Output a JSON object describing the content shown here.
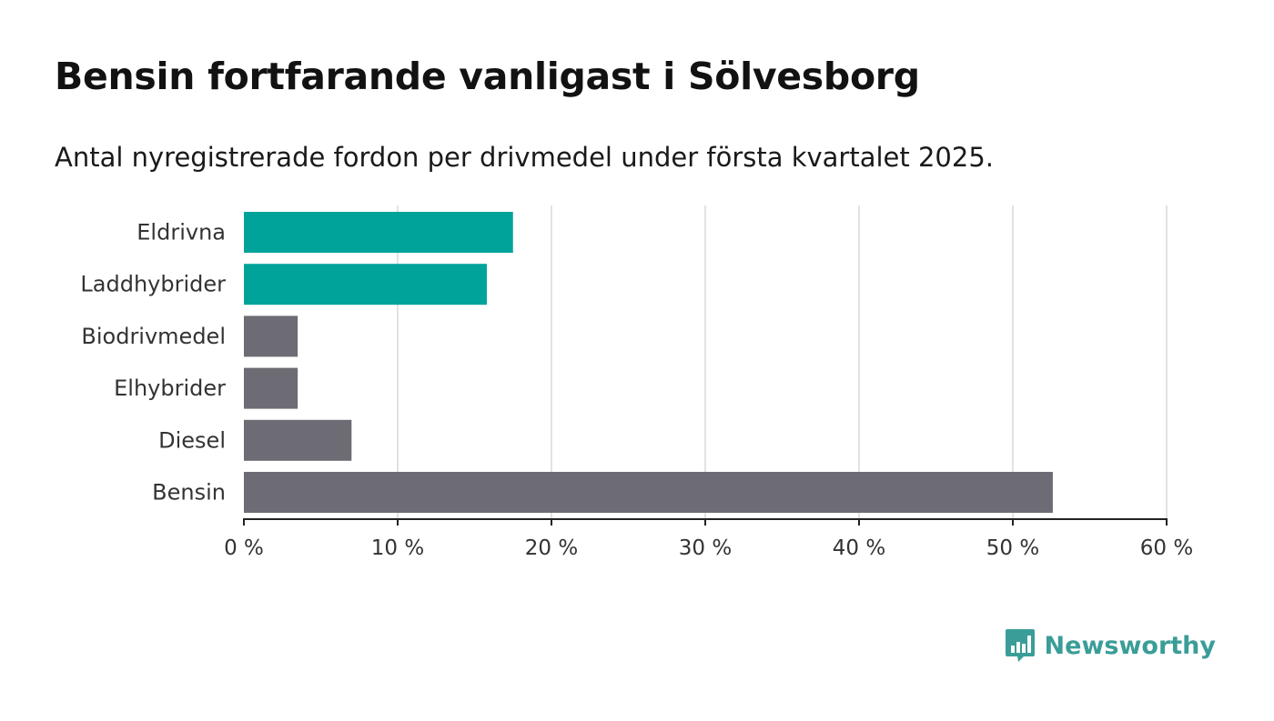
{
  "chart_data": {
    "type": "bar",
    "orientation": "horizontal",
    "title": "Bensin fortfarande vanligast i Sölvesborg",
    "subtitle": "Antal nyregistrerade fordon per drivmedel under första kvartalet 2025.",
    "categories": [
      "Eldrivna",
      "Laddhybrider",
      "Biodrivmedel",
      "Elhybrider",
      "Diesel",
      "Bensin"
    ],
    "values": [
      17.5,
      15.8,
      3.5,
      3.5,
      7.0,
      52.6
    ],
    "bar_colors": [
      "#00a39a",
      "#00a39a",
      "#6d6b73",
      "#6d6b73",
      "#6d6b73",
      "#6d6b73"
    ],
    "xlim": [
      0,
      60
    ],
    "x_ticks": [
      0,
      10,
      20,
      30,
      40,
      50,
      60
    ],
    "x_tick_labels": [
      "0 %",
      "10 %",
      "20 %",
      "30 %",
      "40 %",
      "50 %",
      "60 %"
    ],
    "grid": "vertical",
    "xlabel": "",
    "ylabel": ""
  },
  "brand": {
    "name": "Newsworthy",
    "icon": "newsworthy-logo-icon",
    "color": "#3a9d98"
  }
}
